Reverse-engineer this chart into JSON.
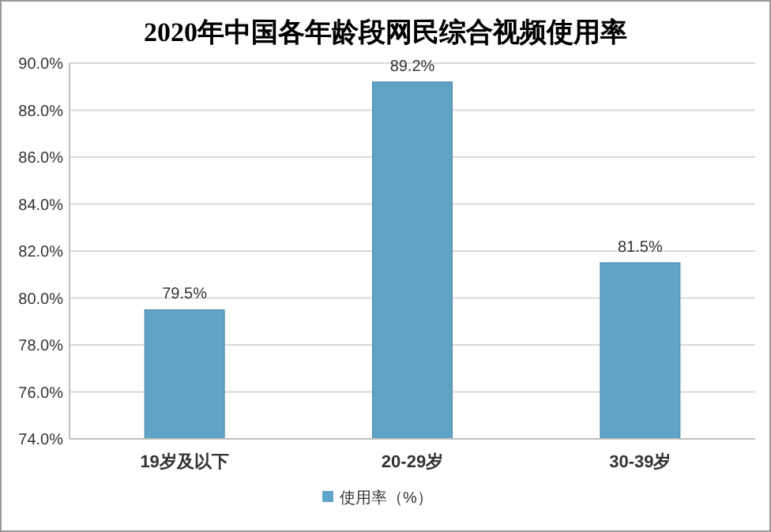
{
  "chart_data": {
    "type": "bar",
    "title": "2020年中国各年龄段网民综合视频使用率",
    "categories": [
      "19岁及以下",
      "20-29岁",
      "30-39岁"
    ],
    "series": [
      {
        "name": "使用率（%）",
        "color": "#5fa3c6",
        "values": [
          79.5,
          89.2,
          81.5
        ],
        "value_labels": [
          "79.5%",
          "89.2%",
          "81.5%"
        ]
      }
    ],
    "ylim": [
      74,
      90
    ],
    "yticks": [
      {
        "value": 74,
        "label": "74.0%"
      },
      {
        "value": 76,
        "label": "76.0%"
      },
      {
        "value": 78,
        "label": "78.0%"
      },
      {
        "value": 80,
        "label": "80.0%"
      },
      {
        "value": 82,
        "label": "82.0%"
      },
      {
        "value": 84,
        "label": "84.0%"
      },
      {
        "value": 86,
        "label": "86.0%"
      },
      {
        "value": 88,
        "label": "88.0%"
      },
      {
        "value": 90,
        "label": "90.0%"
      }
    ],
    "grid": "y",
    "legend": "bottom"
  }
}
